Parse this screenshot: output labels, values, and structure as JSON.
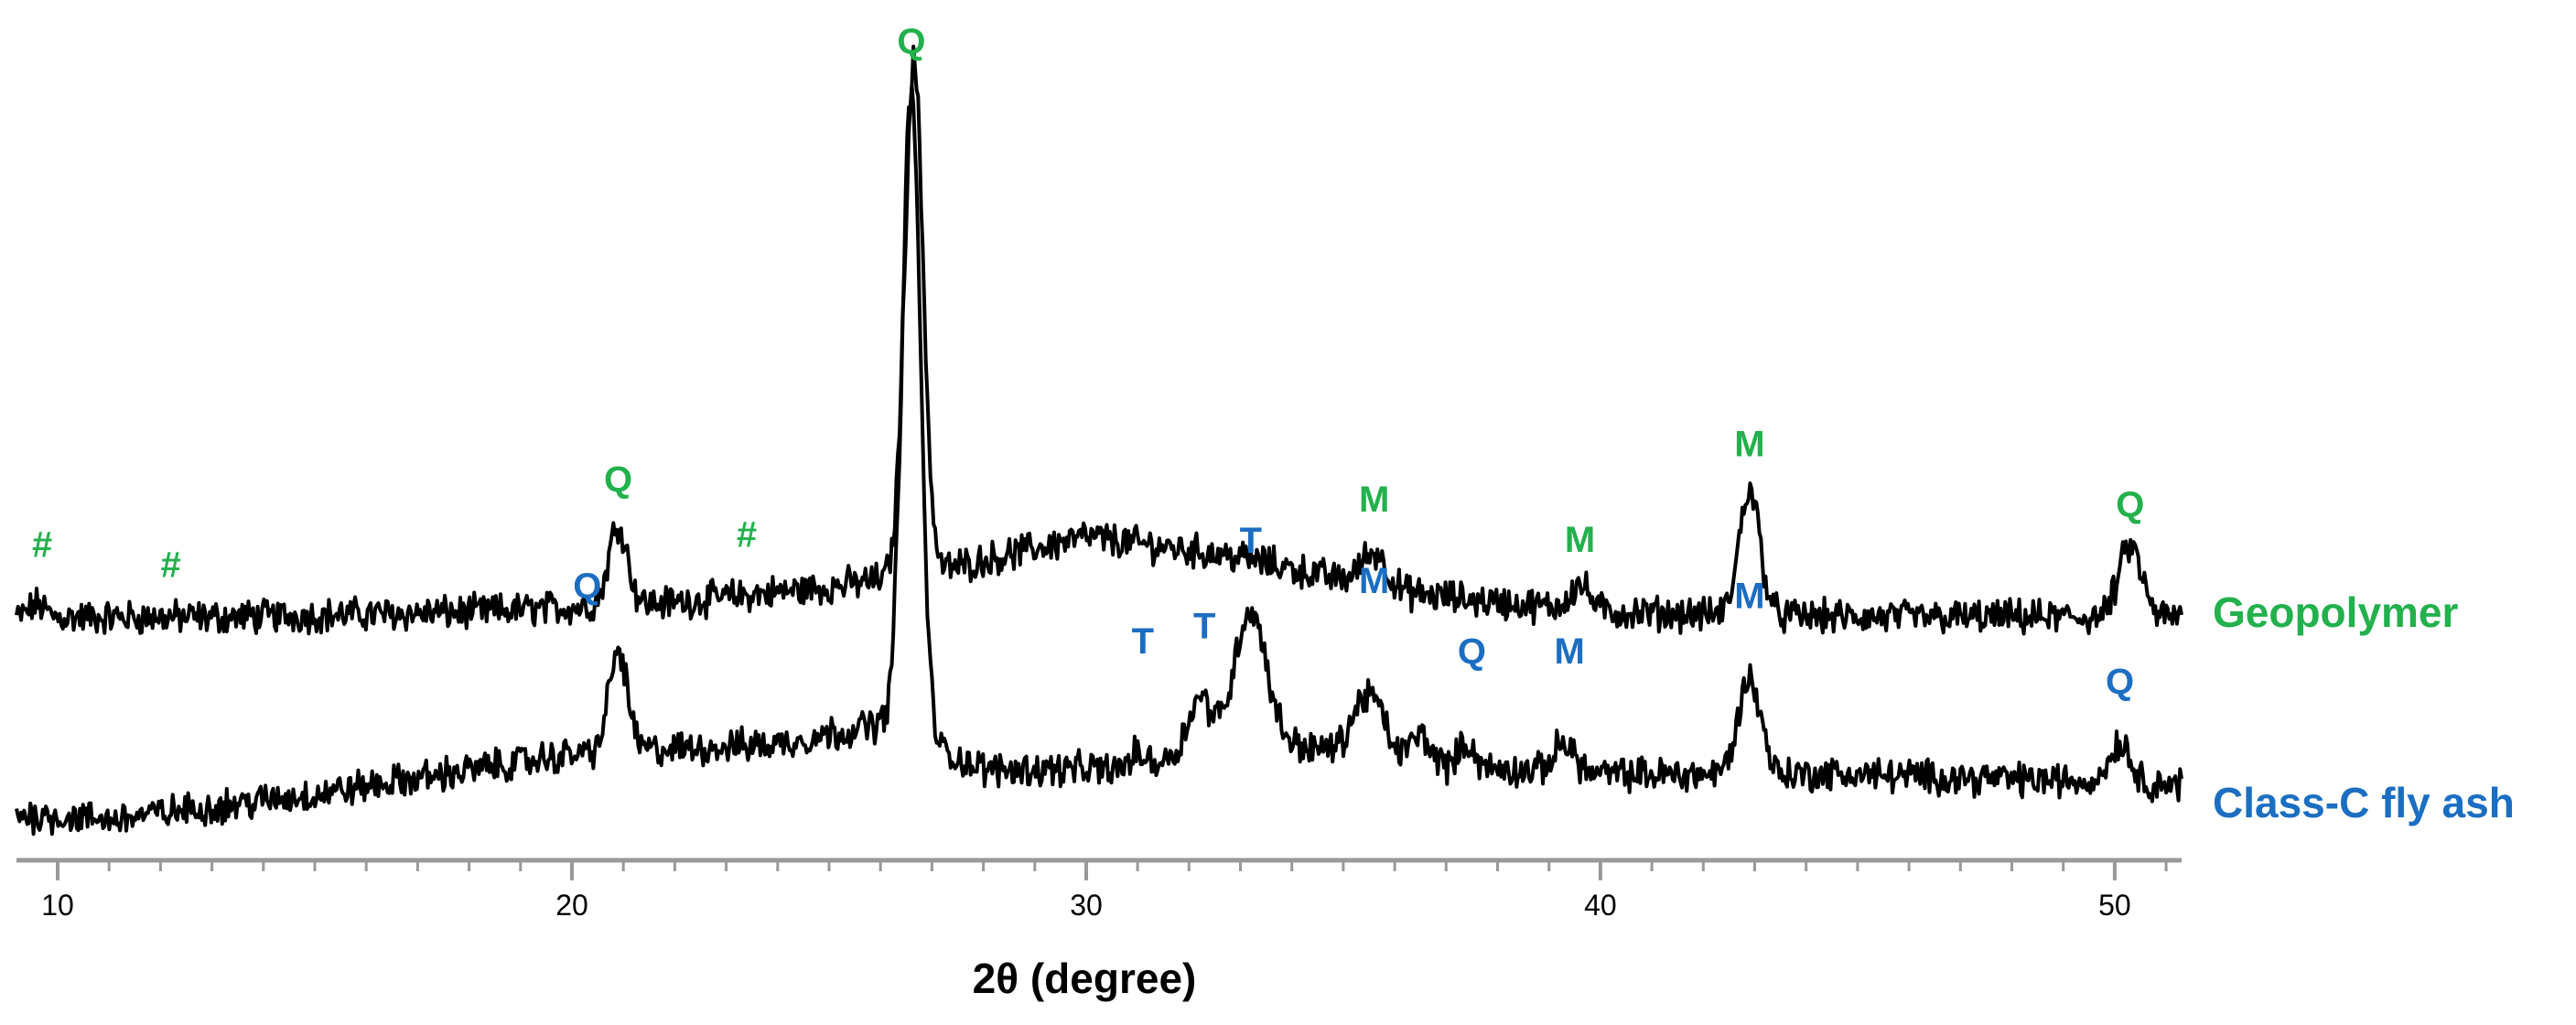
{
  "chart_data": {
    "type": "line",
    "xlabel": "2θ (degree)",
    "ylabel": "",
    "xlim": [
      9.2,
      51.3
    ],
    "x_ticks": [
      "10",
      "20",
      "30",
      "40",
      "50"
    ],
    "colors": {
      "geopolymer": "#22b14c",
      "flyash": "#1b6ec2",
      "trace": "#000000"
    },
    "series": [
      {
        "name": "Geopolymer",
        "key": "geopolymer",
        "baseline": [
          [
            9.2,
            0.1
          ],
          [
            13,
            0.1
          ],
          [
            18,
            0.2
          ],
          [
            22,
            0.4
          ],
          [
            25,
            0.7
          ],
          [
            27,
            1.0
          ],
          [
            30,
            1.7
          ],
          [
            33,
            1.3
          ],
          [
            36,
            0.6
          ],
          [
            40,
            0.2
          ],
          [
            45,
            0.1
          ],
          [
            51.3,
            0.1
          ]
        ],
        "peaks": [
          {
            "x": 9.6,
            "h": 0.25,
            "w": 0.15
          },
          {
            "x": 20.9,
            "h": 1.6,
            "w": 0.18
          },
          {
            "x": 26.65,
            "h": 10.2,
            "w": 0.18
          },
          {
            "x": 35.6,
            "h": 0.7,
            "w": 0.25
          },
          {
            "x": 39.6,
            "h": 0.5,
            "w": 0.2
          },
          {
            "x": 42.9,
            "h": 2.5,
            "w": 0.2
          },
          {
            "x": 50.3,
            "h": 1.4,
            "w": 0.22
          }
        ],
        "labels": [
          {
            "text": "#",
            "x": 9.7,
            "y": 1.3
          },
          {
            "text": "#",
            "x": 12.2,
            "y": 0.9
          },
          {
            "text": "Q",
            "x": 20.9,
            "y": 2.6
          },
          {
            "text": "#",
            "x": 23.4,
            "y": 1.5
          },
          {
            "text": "Q",
            "x": 26.6,
            "y": 11.3
          },
          {
            "text": "M",
            "x": 35.6,
            "y": 2.2
          },
          {
            "text": "M",
            "x": 39.6,
            "y": 1.4
          },
          {
            "text": "M",
            "x": 42.9,
            "y": 3.3
          },
          {
            "text": "Q",
            "x": 50.3,
            "y": 2.1
          }
        ]
      },
      {
        "name": "Class-C fly ash",
        "key": "flyash",
        "baseline": [
          [
            9.2,
            0.0
          ],
          [
            11,
            -0.1
          ],
          [
            15,
            0.4
          ],
          [
            20,
            1.2
          ],
          [
            24,
            1.4
          ],
          [
            26,
            1.8
          ],
          [
            28,
            0.9
          ],
          [
            31,
            0.9
          ],
          [
            33,
            1.6
          ],
          [
            36,
            1.0
          ],
          [
            40,
            0.8
          ],
          [
            45,
            0.8
          ],
          [
            51.3,
            0.6
          ]
        ],
        "peaks": [
          {
            "x": 20.9,
            "h": 2.0,
            "w": 0.18
          },
          {
            "x": 26.6,
            "h": 12.8,
            "w": 0.18
          },
          {
            "x": 31.0,
            "h": 0.3,
            "w": 0.15
          },
          {
            "x": 32.2,
            "h": 1.0,
            "w": 0.22
          },
          {
            "x": 33.2,
            "h": 2.5,
            "w": 0.3
          },
          {
            "x": 35.5,
            "h": 1.3,
            "w": 0.3
          },
          {
            "x": 36.5,
            "h": 0.6,
            "w": 0.2
          },
          {
            "x": 37.4,
            "h": 0.5,
            "w": 0.15
          },
          {
            "x": 39.3,
            "h": 0.6,
            "w": 0.2
          },
          {
            "x": 42.9,
            "h": 1.9,
            "w": 0.22
          },
          {
            "x": 50.1,
            "h": 0.8,
            "w": 0.2
          }
        ],
        "labels": [
          {
            "text": "Q",
            "x": 20.3,
            "y": 4.3
          },
          {
            "text": "T",
            "x": 31.1,
            "y": 3.2
          },
          {
            "text": "T",
            "x": 32.3,
            "y": 3.5
          },
          {
            "text": "T",
            "x": 33.2,
            "y": 5.2
          },
          {
            "text": "M",
            "x": 35.6,
            "y": 4.4
          },
          {
            "text": "Q",
            "x": 37.5,
            "y": 3.0
          },
          {
            "text": "M",
            "x": 39.4,
            "y": 3.0
          },
          {
            "text": "M",
            "x": 42.9,
            "y": 4.1
          },
          {
            "text": "Q",
            "x": 50.1,
            "y": 2.4
          }
        ]
      }
    ]
  }
}
